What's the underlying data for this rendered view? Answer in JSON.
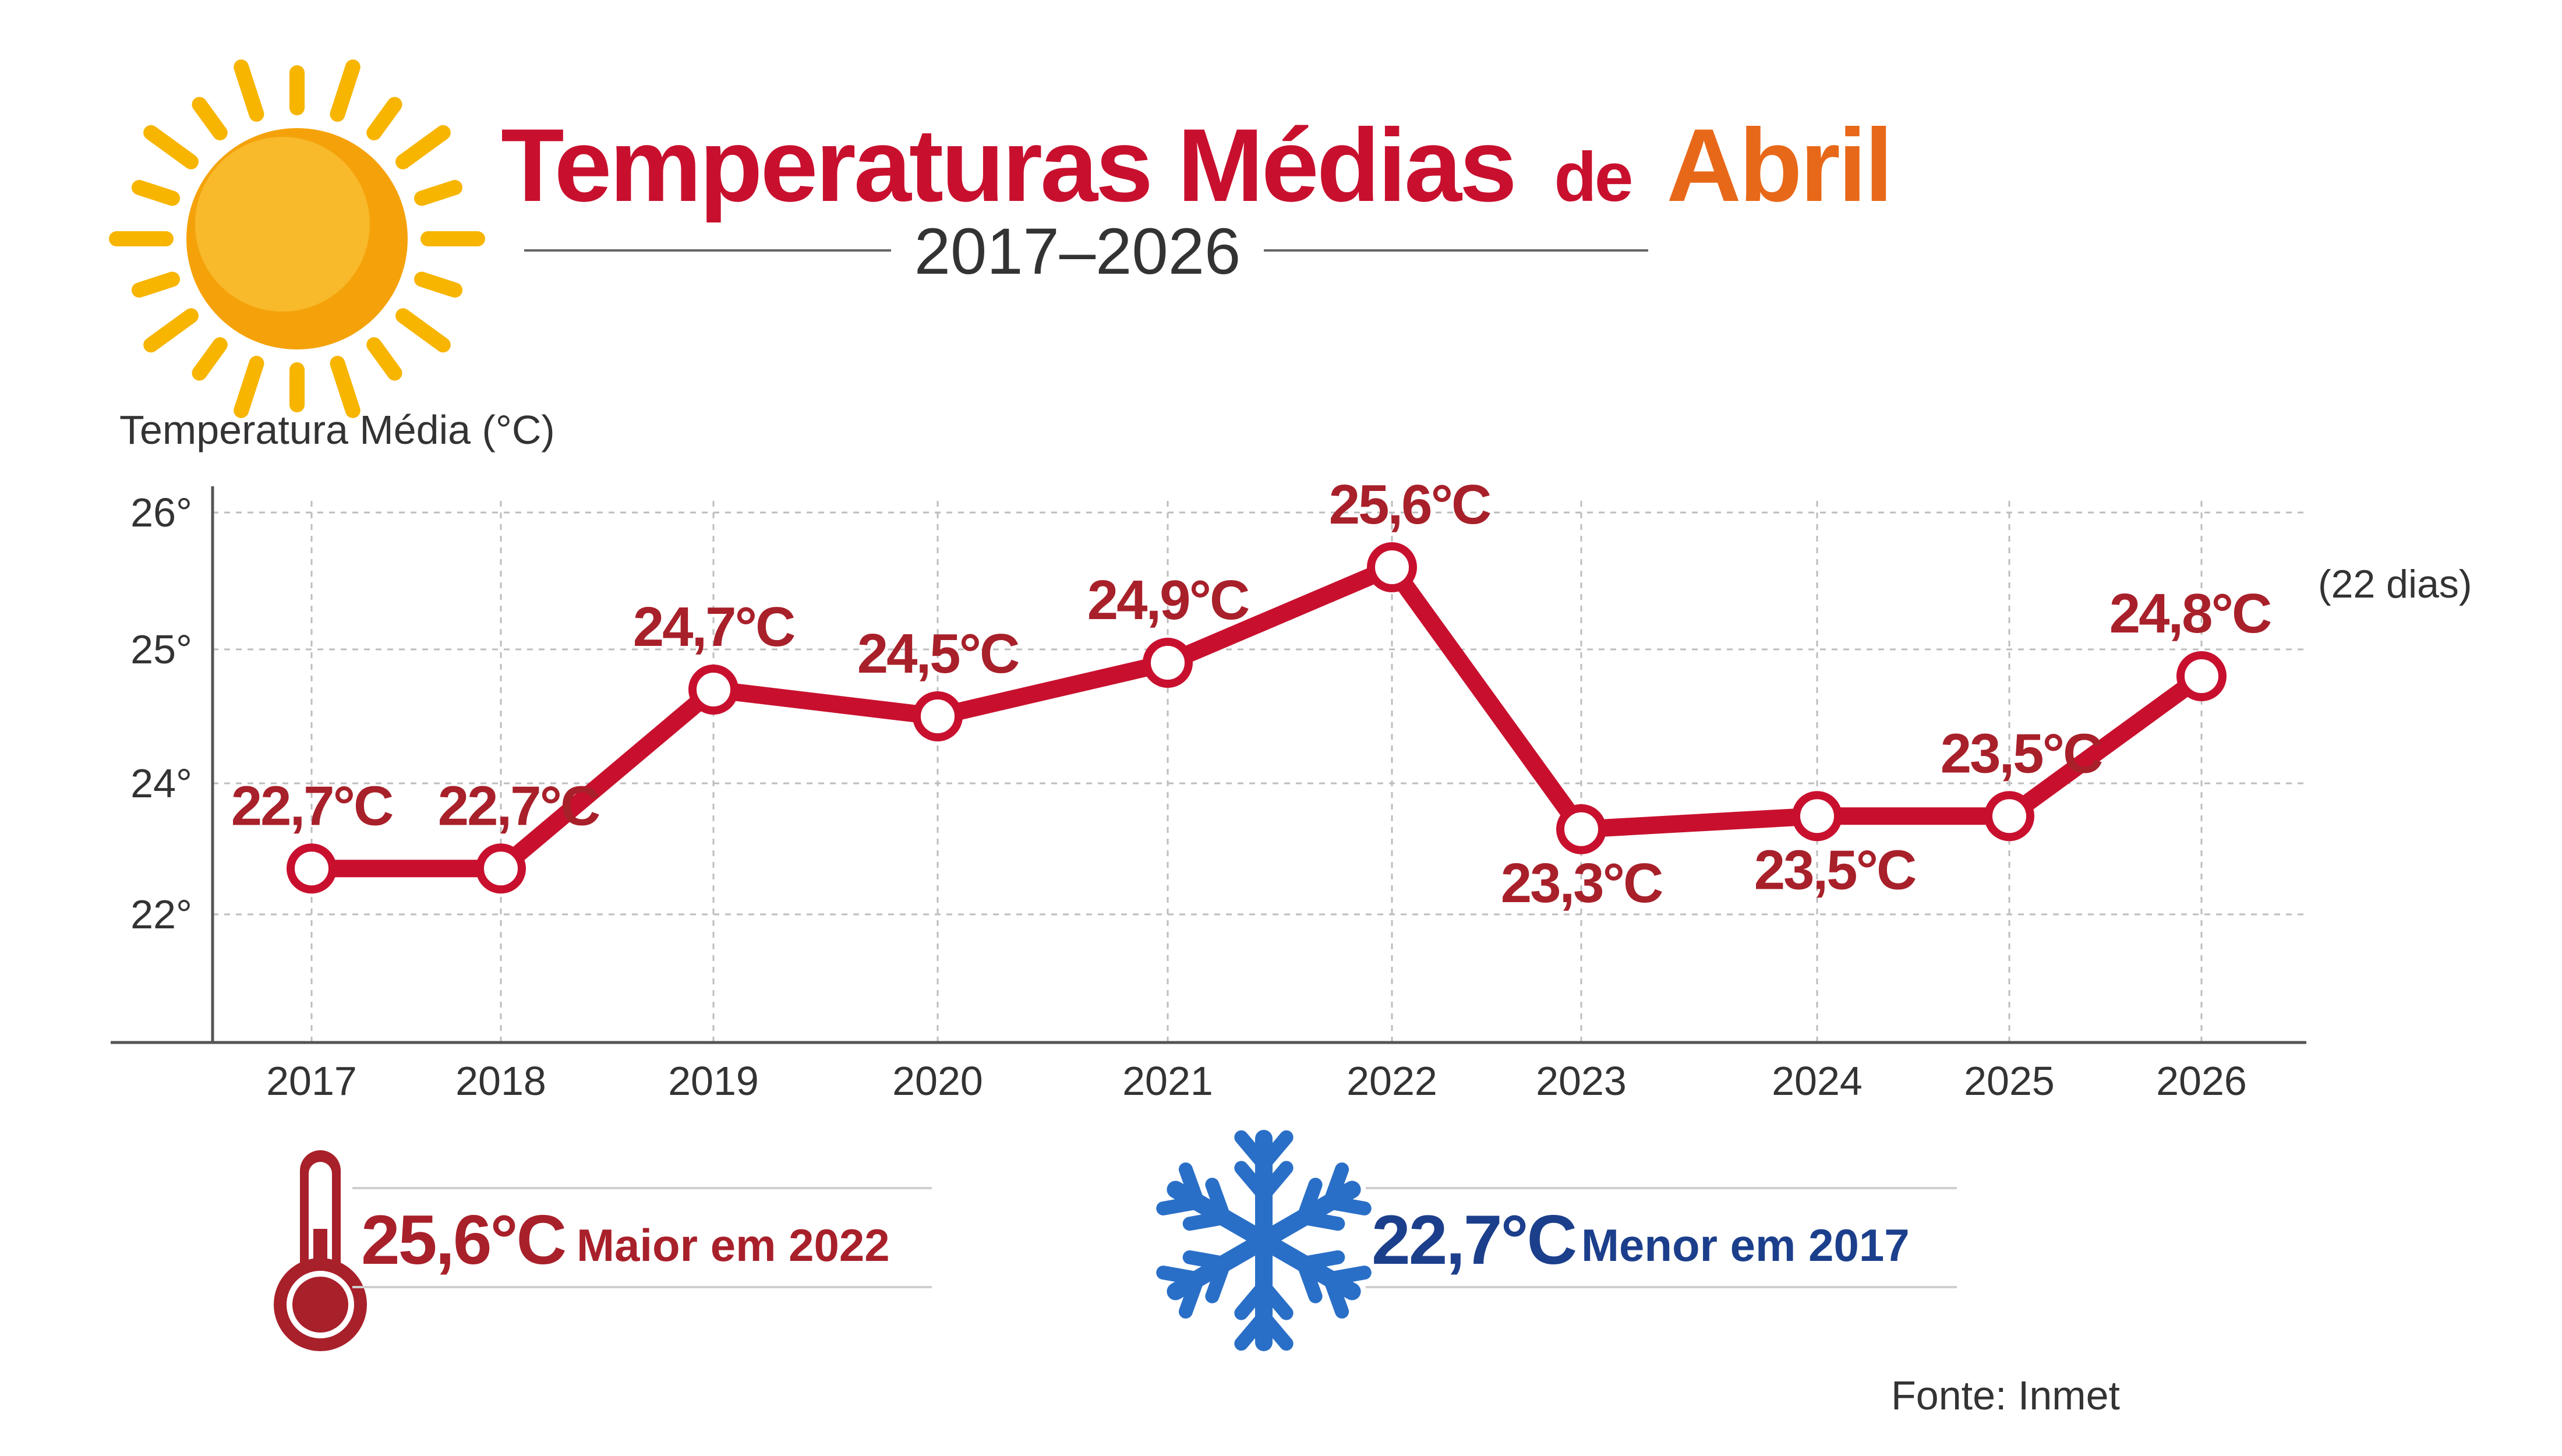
{
  "header": {
    "title_part1": "Temperaturas Médias",
    "title_part2": "de",
    "title_part3": "Abril",
    "subtitle": "2017–2026"
  },
  "colors": {
    "accent_red": "#c8102e",
    "dark_red": "#a8202a",
    "orange": "#e8681a",
    "sun_yellow": "#f7b500",
    "sun_core": "#f5a20a",
    "blue": "#1c3f8c",
    "snow_blue": "#2a6fc7",
    "grid": "#bdbdbd",
    "axis": "#555555",
    "text_gray": "#333333"
  },
  "icons": {
    "header": "sun-icon",
    "max": "thermometer-icon",
    "min": "snowflake-icon"
  },
  "chart_data": {
    "type": "line",
    "ylabel": "Temperatura Média (°C)",
    "y_ticks": [
      {
        "value": 22,
        "label": "22°"
      },
      {
        "value": 24,
        "label": "24°"
      },
      {
        "value": 25,
        "label": "25°"
      },
      {
        "value": 26,
        "label": "26°"
      }
    ],
    "y_tick_scale": [
      22,
      24,
      25,
      26
    ],
    "ylim": [
      22,
      26.3
    ],
    "grid": true,
    "categories": [
      "2017",
      "2018",
      "2019",
      "2020",
      "2021",
      "2022",
      "2023",
      "2024",
      "2025",
      "2026"
    ],
    "values": [
      22.7,
      22.7,
      24.7,
      24.5,
      24.9,
      25.6,
      23.3,
      23.5,
      23.5,
      24.8
    ],
    "data_labels": [
      "22,7°C",
      "22,7°C",
      "24,7°C",
      "24,5°C",
      "24,9°C",
      "25,6°C",
      "23,3°C",
      "23,5°C",
      "23,5°C",
      "24,8°C"
    ],
    "annotation_last": "(22 dias)"
  },
  "summary": {
    "max_value": "25,6°C",
    "max_text": "Maior em 2022",
    "min_value": "22,7°C",
    "min_text": "Menor em 2017"
  },
  "source": "Fonte: Inmet"
}
